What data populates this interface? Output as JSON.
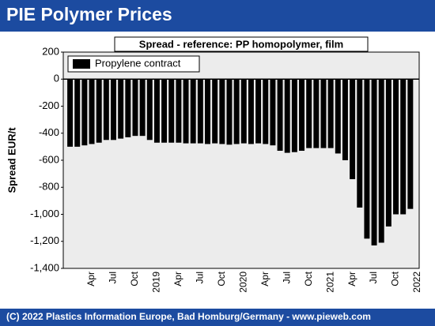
{
  "header": {
    "title": "PIE Polymer Prices"
  },
  "footer": {
    "text": "(C) 2022 Plastics Information Europe, Bad Homburg/Germany - www.pieweb.com"
  },
  "chart_data": {
    "type": "bar",
    "title": "Spread - reference: PP homopolymer, film",
    "y_label": "Spread EUR/t",
    "categories": [
      null,
      null,
      null,
      "Apr",
      null,
      null,
      "Jul",
      null,
      null,
      "Oct",
      null,
      null,
      "2019",
      null,
      null,
      "Apr",
      null,
      null,
      "Jul",
      null,
      null,
      "Oct",
      null,
      null,
      "2020",
      null,
      null,
      "Apr",
      null,
      null,
      "Jul",
      null,
      null,
      "Oct",
      null,
      null,
      "2021",
      null,
      null,
      "Apr",
      null,
      null,
      "Jul",
      null,
      null,
      "Oct",
      null,
      null,
      "2022"
    ],
    "series": [
      {
        "name": "Propylene contract",
        "color": "#000000",
        "values": [
          -500,
          -500,
          -490,
          -480,
          -470,
          -450,
          -450,
          -440,
          -430,
          -420,
          -420,
          -450,
          -470,
          -470,
          -470,
          -470,
          -475,
          -475,
          -475,
          -480,
          -475,
          -480,
          -485,
          -480,
          -475,
          -480,
          -475,
          -480,
          -490,
          -530,
          -545,
          -540,
          -530,
          -510,
          -510,
          -510,
          -510,
          -550,
          -600,
          -740,
          -950,
          -1180,
          -1230,
          -1210,
          -1090,
          -1000,
          -1000,
          -960,
          null
        ]
      }
    ],
    "ylim": [
      -1400,
      200
    ],
    "yticks": [
      {
        "value": -1400,
        "label": "-1,400"
      },
      {
        "value": -1200,
        "label": "-1,200"
      },
      {
        "value": -1000,
        "label": "-1,000"
      },
      -800,
      -600,
      -400,
      -200,
      0,
      200
    ],
    "grid": false,
    "legend": "top-left"
  }
}
